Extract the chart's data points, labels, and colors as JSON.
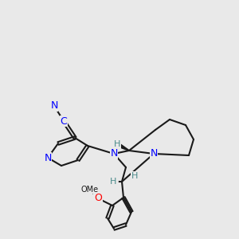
{
  "bg_color": "#e9e9e9",
  "bond_color": "#1a1a1a",
  "bond_width": 1.5,
  "N_color": "#0000ff",
  "O_color": "#ff0000",
  "H_color": "#4a8a8a",
  "CN_color": "#0000ff",
  "atoms": {
    "N1_label": "N",
    "N2_label": "N",
    "O_label": "O",
    "H1_label": "H",
    "H2_label": "H",
    "H3_label": "H",
    "C_label": "C",
    "N_cn_label": "N"
  }
}
